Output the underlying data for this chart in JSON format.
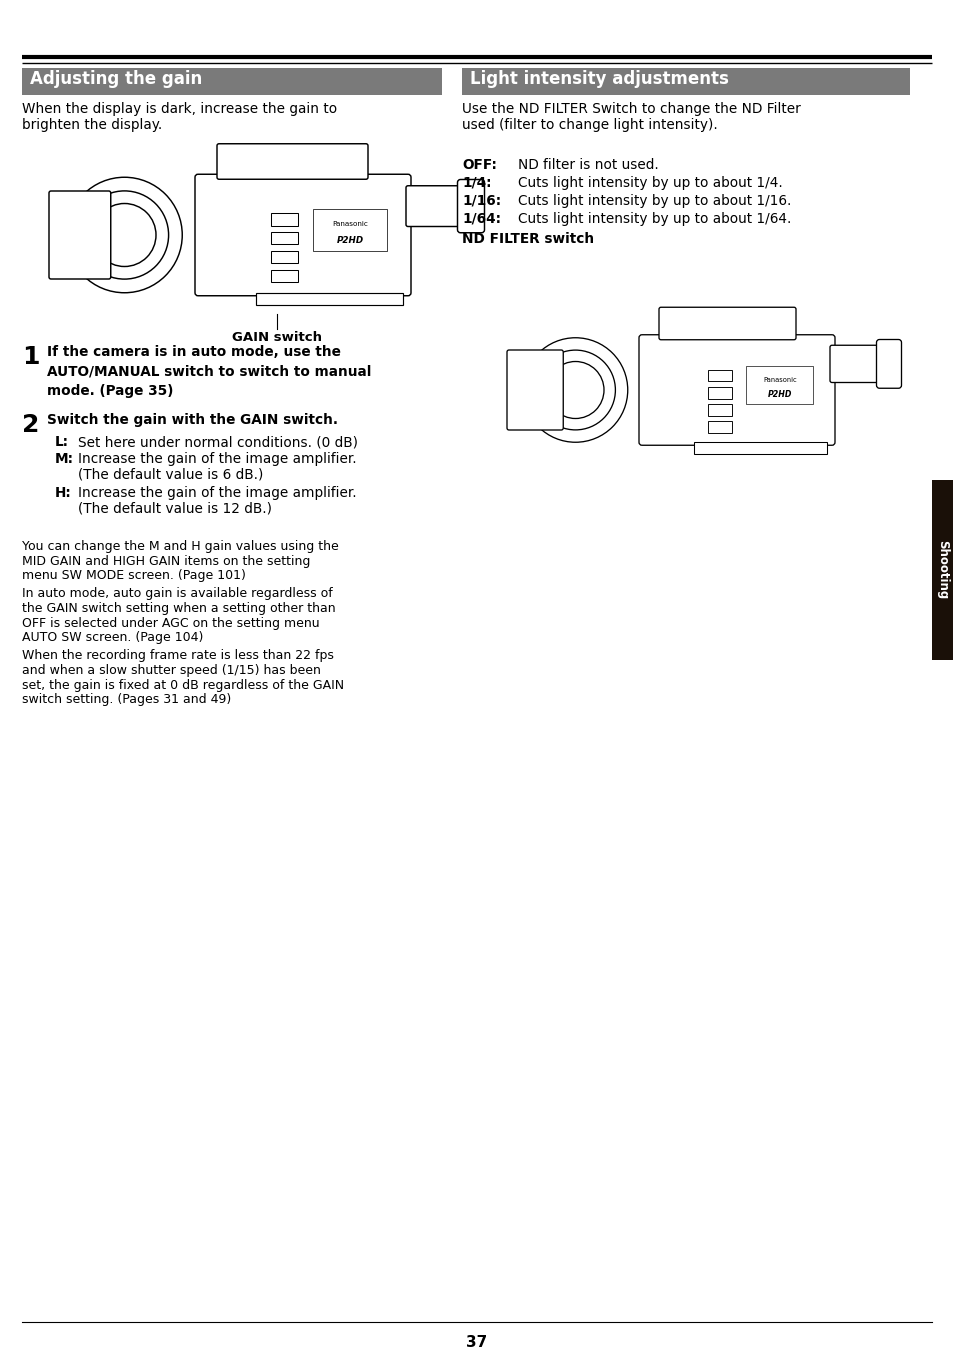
{
  "page_bg": "#ffffff",
  "header_line_color": "#000000",
  "header_bar_color": "#7a7a7a",
  "header_text_color": "#ffffff",
  "body_text_color": "#000000",
  "left_header": "Adjusting the gain",
  "right_header": "Light intensity adjustments",
  "left_intro_line1": "When the display is dark, increase the gain to",
  "left_intro_line2": "brighten the display.",
  "gain_switch_label": "GAIN switch",
  "step1_num": "1",
  "step1_text": "If the camera is in auto mode, use the\nAUTO/MANUAL switch to switch to manual\nmode. (Page 35)",
  "step2_num": "2",
  "step2_text": "Switch the gain with the GAIN switch.",
  "step2_L": "Set here under normal conditions. (0 dB)",
  "step2_M_1": "Increase the gain of the image amplifier.",
  "step2_M_2": "(The default value is 6 dB.)",
  "step2_H_1": "Increase the gain of the image amplifier.",
  "step2_H_2": "(The default value is 12 dB.)",
  "para1_lines": [
    "You can change the M and H gain values using the",
    "MID GAIN and HIGH GAIN items on the setting",
    "menu SW MODE screen. (Page 101)"
  ],
  "para2_lines": [
    "In auto mode, auto gain is available regardless of",
    "the GAIN switch setting when a setting other than",
    "OFF is selected under AGC on the setting menu",
    "AUTO SW screen. (Page 104)"
  ],
  "para3_lines": [
    "When the recording frame rate is less than 22 fps",
    "and when a slow shutter speed (1/15) has been",
    "set, the gain is fixed at 0 dB regardless of the GAIN",
    "switch setting. (Pages 31 and 49)"
  ],
  "right_intro_line1": "Use the ND FILTER Switch to change the ND Filter",
  "right_intro_line2": "used (filter to change light intensity).",
  "off_label": "OFF:",
  "off_text": "ND filter is not used.",
  "f4_label": "1/4:",
  "f4_text": "Cuts light intensity by up to about 1/4.",
  "f16_label": "1/16:",
  "f16_text": "Cuts light intensity by up to about 1/16.",
  "f64_label": "1/64:",
  "f64_text": "Cuts light intensity by up to about 1/64.",
  "nd_filter_label": "ND FILTER switch",
  "sidebar_text": "Shooting",
  "sidebar_color": "#1a1008",
  "sidebar_text_color": "#ffffff",
  "page_number": "37"
}
